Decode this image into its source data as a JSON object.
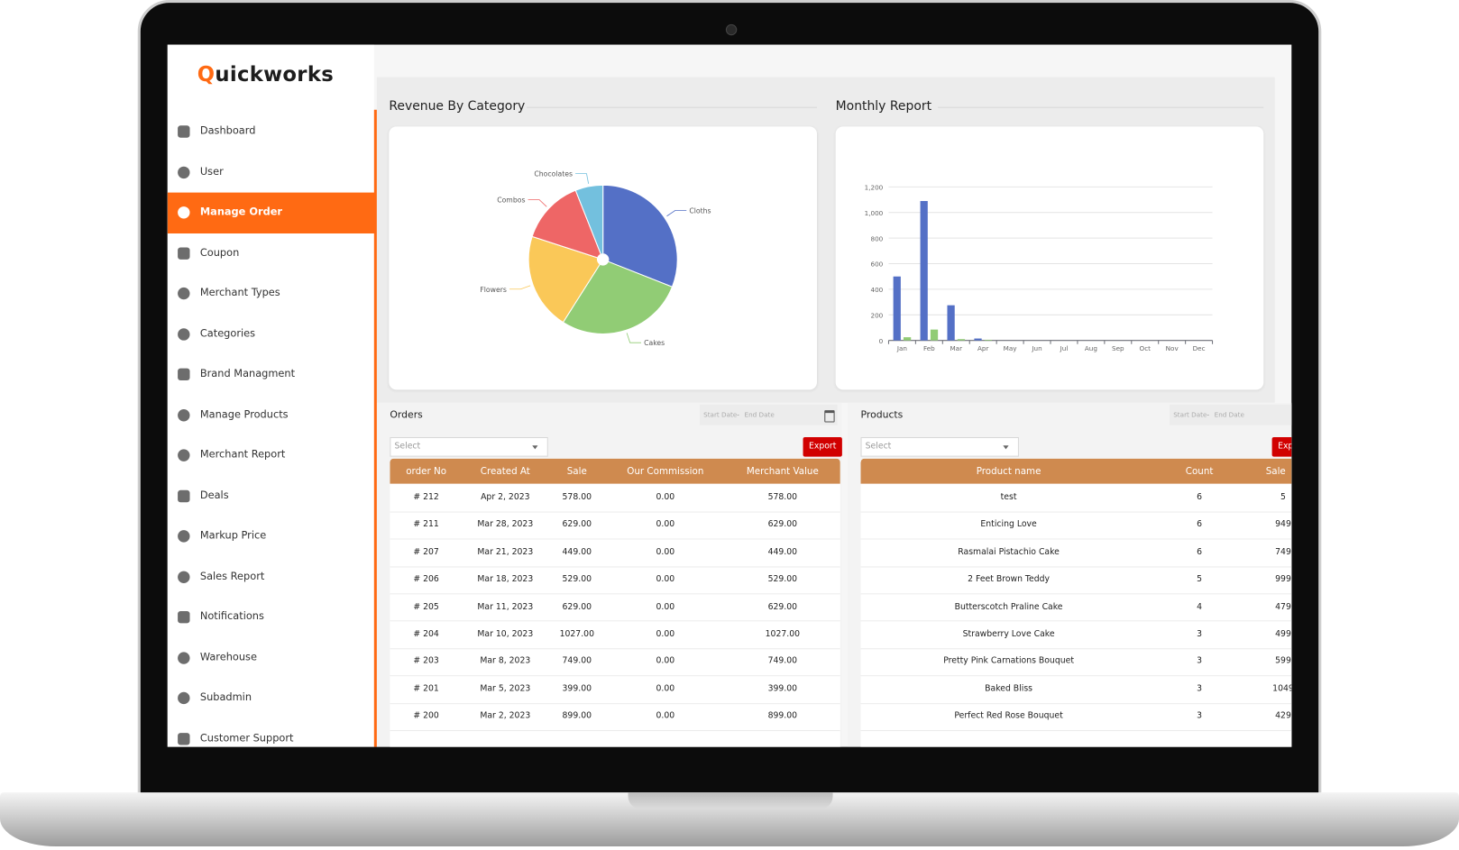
{
  "brand": "Quickworks",
  "sidebar": {
    "items": [
      "Dashboard",
      "User",
      "Manage Order",
      "Coupon",
      "Merchant Types",
      "Categories",
      "Brand Managment",
      "Manage Products",
      "Merchant Report",
      "Deals",
      "Markup Price",
      "Sales Report",
      "Notifications",
      "Warehouse",
      "Subadmin",
      "Customer Support"
    ],
    "active": 2
  },
  "chart_data": [
    {
      "type": "pie",
      "title": "Revenue By Category",
      "categories": [
        "Cloths",
        "Cakes",
        "Flowers",
        "Combos",
        "Chocolates"
      ],
      "values": [
        31,
        28,
        21,
        14,
        6
      ],
      "colors": [
        "#5470c6",
        "#91cc75",
        "#fac858",
        "#ee6666",
        "#73c0de"
      ]
    },
    {
      "type": "bar",
      "title": "Monthly Report",
      "categories": [
        "Jan",
        "Feb",
        "Mar",
        "Apr",
        "May",
        "Jun",
        "Jul",
        "Aug",
        "Sep",
        "Oct",
        "Nov",
        "Dec"
      ],
      "series": [
        {
          "color": "#5470c6",
          "values": [
            500,
            1090,
            275,
            15,
            0,
            0,
            0,
            0,
            0,
            0,
            0,
            0
          ]
        },
        {
          "color": "#91cc75",
          "values": [
            25,
            85,
            10,
            5,
            0,
            0,
            0,
            0,
            0,
            0,
            0,
            0
          ]
        }
      ],
      "ylim": [
        0,
        1200
      ],
      "yticks": [
        0,
        200,
        400,
        600,
        800,
        {
          "value": 1000,
          "label": "1,000"
        },
        {
          "value": 1200,
          "label": "1,200"
        }
      ],
      "grid": true
    }
  ],
  "orders": {
    "title": "Orders",
    "date_start": "Start Date",
    "date_sep": "-",
    "date_end": "End Date",
    "select": "Select",
    "export": "Export",
    "columns": [
      "order No",
      "Created At",
      "Sale",
      "Our Commission",
      "Merchant Value"
    ],
    "rows": [
      [
        "# 212",
        "Apr 2, 2023",
        "578.00",
        "0.00",
        "578.00"
      ],
      [
        "# 211",
        "Mar 28, 2023",
        "629.00",
        "0.00",
        "629.00"
      ],
      [
        "# 207",
        "Mar 21, 2023",
        "449.00",
        "0.00",
        "449.00"
      ],
      [
        "# 206",
        "Mar 18, 2023",
        "529.00",
        "0.00",
        "529.00"
      ],
      [
        "# 205",
        "Mar 11, 2023",
        "629.00",
        "0.00",
        "629.00"
      ],
      [
        "# 204",
        "Mar 10, 2023",
        "1027.00",
        "0.00",
        "1027.00"
      ],
      [
        "# 203",
        "Mar 8, 2023",
        "749.00",
        "0.00",
        "749.00"
      ],
      [
        "# 201",
        "Mar 5, 2023",
        "399.00",
        "0.00",
        "399.00"
      ],
      [
        "# 200",
        "Mar 2, 2023",
        "899.00",
        "0.00",
        "899.00"
      ]
    ]
  },
  "products": {
    "title": "Products",
    "date_start": "Start Date",
    "date_sep": "-",
    "date_end": "End Date",
    "select": "Select",
    "export": "Export",
    "columns": [
      "Product name",
      "Count",
      "Sale"
    ],
    "rows": [
      [
        "test",
        "6",
        "5"
      ],
      [
        "Enticing Love",
        "6",
        "949"
      ],
      [
        "Rasmalai Pistachio Cake",
        "6",
        "749"
      ],
      [
        "2 Feet Brown Teddy",
        "5",
        "999"
      ],
      [
        "Butterscotch Praline Cake",
        "4",
        "479"
      ],
      [
        "Strawberry Love Cake",
        "3",
        "499"
      ],
      [
        "Pretty Pink Carnations Bouquet",
        "3",
        "599"
      ],
      [
        "Baked Bliss",
        "3",
        "1049"
      ],
      [
        "Perfect Red Rose Bouquet",
        "3",
        "429"
      ]
    ]
  }
}
